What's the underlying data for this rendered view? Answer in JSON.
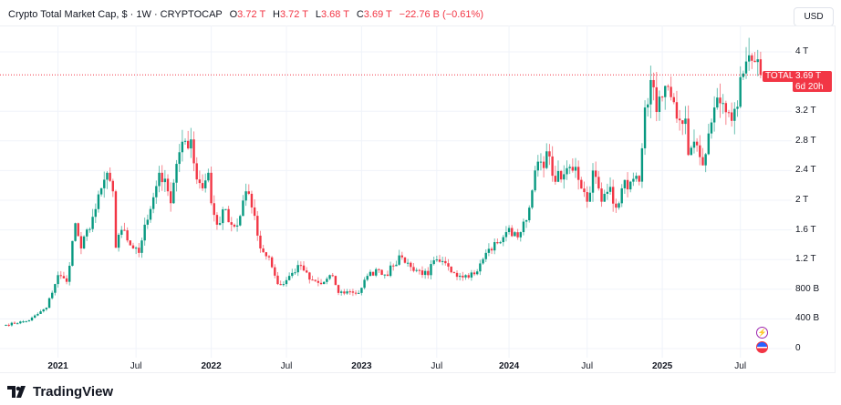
{
  "header": {
    "title": "Crypto Total Market Cap, $ · 1W · CRYPTOCAP",
    "o_label": "O",
    "o": "3.72 T",
    "h_label": "H",
    "h": "3.72 T",
    "l_label": "L",
    "l": "3.68 T",
    "c_label": "C",
    "c": "3.69 T",
    "change": "−22.76 B (−0.61%)"
  },
  "currency_button": "USD",
  "price_tag": {
    "symbol": "TOTAL",
    "price": "3.69 T",
    "countdown": "6d 20h"
  },
  "brand": "TradingView",
  "colors": {
    "up": "#089981",
    "down": "#f23645",
    "grid": "#f0f3fa",
    "text": "#131722"
  },
  "icons": [
    "lightning-icon",
    "us-flag-icon"
  ],
  "chart_data": {
    "type": "candlestick",
    "interval": "1W",
    "title": "Crypto Total Market Cap",
    "yunit": "T (trillion USD)",
    "ylim": [
      0,
      4.3
    ],
    "ytick_labels": [
      "0",
      "400 B",
      "800 B",
      "1.2 T",
      "1.6 T",
      "2 T",
      "2.4 T",
      "2.8 T",
      "3.2 T",
      "4 T"
    ],
    "ytick_values": [
      0,
      0.4,
      0.8,
      1.2,
      1.6,
      2.0,
      2.4,
      2.8,
      3.2,
      4.0
    ],
    "xtick_labels": [
      "2021",
      "Jul",
      "2022",
      "Jul",
      "2023",
      "Jul",
      "2024",
      "Jul",
      "2025",
      "Jul"
    ],
    "xtick_weeks": [
      18,
      45,
      71,
      97,
      123,
      149,
      174,
      201,
      227,
      254
    ],
    "last_price": 3.69,
    "weekly_close_keypoints": [
      [
        0,
        0.32
      ],
      [
        8,
        0.38
      ],
      [
        14,
        0.55
      ],
      [
        18,
        0.99
      ],
      [
        21,
        0.9
      ],
      [
        24,
        1.69
      ],
      [
        26,
        1.35
      ],
      [
        31,
        1.88
      ],
      [
        35,
        2.37
      ],
      [
        37,
        2.12
      ],
      [
        38,
        1.36
      ],
      [
        40,
        1.6
      ],
      [
        44,
        1.35
      ],
      [
        46,
        1.29
      ],
      [
        48,
        1.67
      ],
      [
        51,
        2.04
      ],
      [
        53,
        2.37
      ],
      [
        56,
        2.12
      ],
      [
        57,
        1.96
      ],
      [
        59,
        2.49
      ],
      [
        62,
        2.8
      ],
      [
        64,
        2.82
      ],
      [
        66,
        2.28
      ],
      [
        68,
        2.16
      ],
      [
        70,
        2.37
      ],
      [
        71,
        1.96
      ],
      [
        73,
        1.67
      ],
      [
        76,
        1.88
      ],
      [
        78,
        1.67
      ],
      [
        80,
        1.66
      ],
      [
        83,
        2.12
      ],
      [
        86,
        1.79
      ],
      [
        88,
        1.35
      ],
      [
        91,
        1.23
      ],
      [
        94,
        0.87
      ],
      [
        96,
        0.87
      ],
      [
        99,
        1.02
      ],
      [
        102,
        1.12
      ],
      [
        105,
        0.93
      ],
      [
        109,
        0.87
      ],
      [
        113,
        0.98
      ],
      [
        115,
        0.75
      ],
      [
        119,
        0.77
      ],
      [
        122,
        0.75
      ],
      [
        125,
        0.98
      ],
      [
        129,
        1.06
      ],
      [
        132,
        0.98
      ],
      [
        133,
        1.12
      ],
      [
        137,
        1.23
      ],
      [
        140,
        1.1
      ],
      [
        146,
        0.99
      ],
      [
        147,
        1.14
      ],
      [
        150,
        1.17
      ],
      [
        155,
        1.02
      ],
      [
        159,
        0.99
      ],
      [
        163,
        1.04
      ],
      [
        166,
        1.29
      ],
      [
        170,
        1.42
      ],
      [
        173,
        1.57
      ],
      [
        178,
        1.57
      ],
      [
        180,
        1.73
      ],
      [
        181,
        1.9
      ],
      [
        184,
        2.52
      ],
      [
        185,
        2.52
      ],
      [
        188,
        2.59
      ],
      [
        189,
        2.33
      ],
      [
        192,
        2.28
      ],
      [
        195,
        2.45
      ],
      [
        197,
        2.45
      ],
      [
        201,
        1.98
      ],
      [
        203,
        2.4
      ],
      [
        206,
        1.98
      ],
      [
        209,
        2.18
      ],
      [
        211,
        1.9
      ],
      [
        213,
        2.16
      ],
      [
        216,
        2.25
      ],
      [
        219,
        2.25
      ],
      [
        220,
        2.7
      ],
      [
        221,
        3.25
      ],
      [
        223,
        3.62
      ],
      [
        225,
        3.19
      ],
      [
        227,
        3.39
      ],
      [
        230,
        3.39
      ],
      [
        232,
        3.1
      ],
      [
        235,
        3.1
      ],
      [
        236,
        2.61
      ],
      [
        239,
        2.74
      ],
      [
        241,
        2.47
      ],
      [
        243,
        2.9
      ],
      [
        245,
        3.25
      ],
      [
        248,
        3.31
      ],
      [
        251,
        3.07
      ],
      [
        253,
        3.26
      ],
      [
        254,
        3.66
      ],
      [
        256,
        3.87
      ],
      [
        258,
        3.88
      ],
      [
        260,
        3.9
      ],
      [
        261,
        3.69
      ]
    ]
  }
}
